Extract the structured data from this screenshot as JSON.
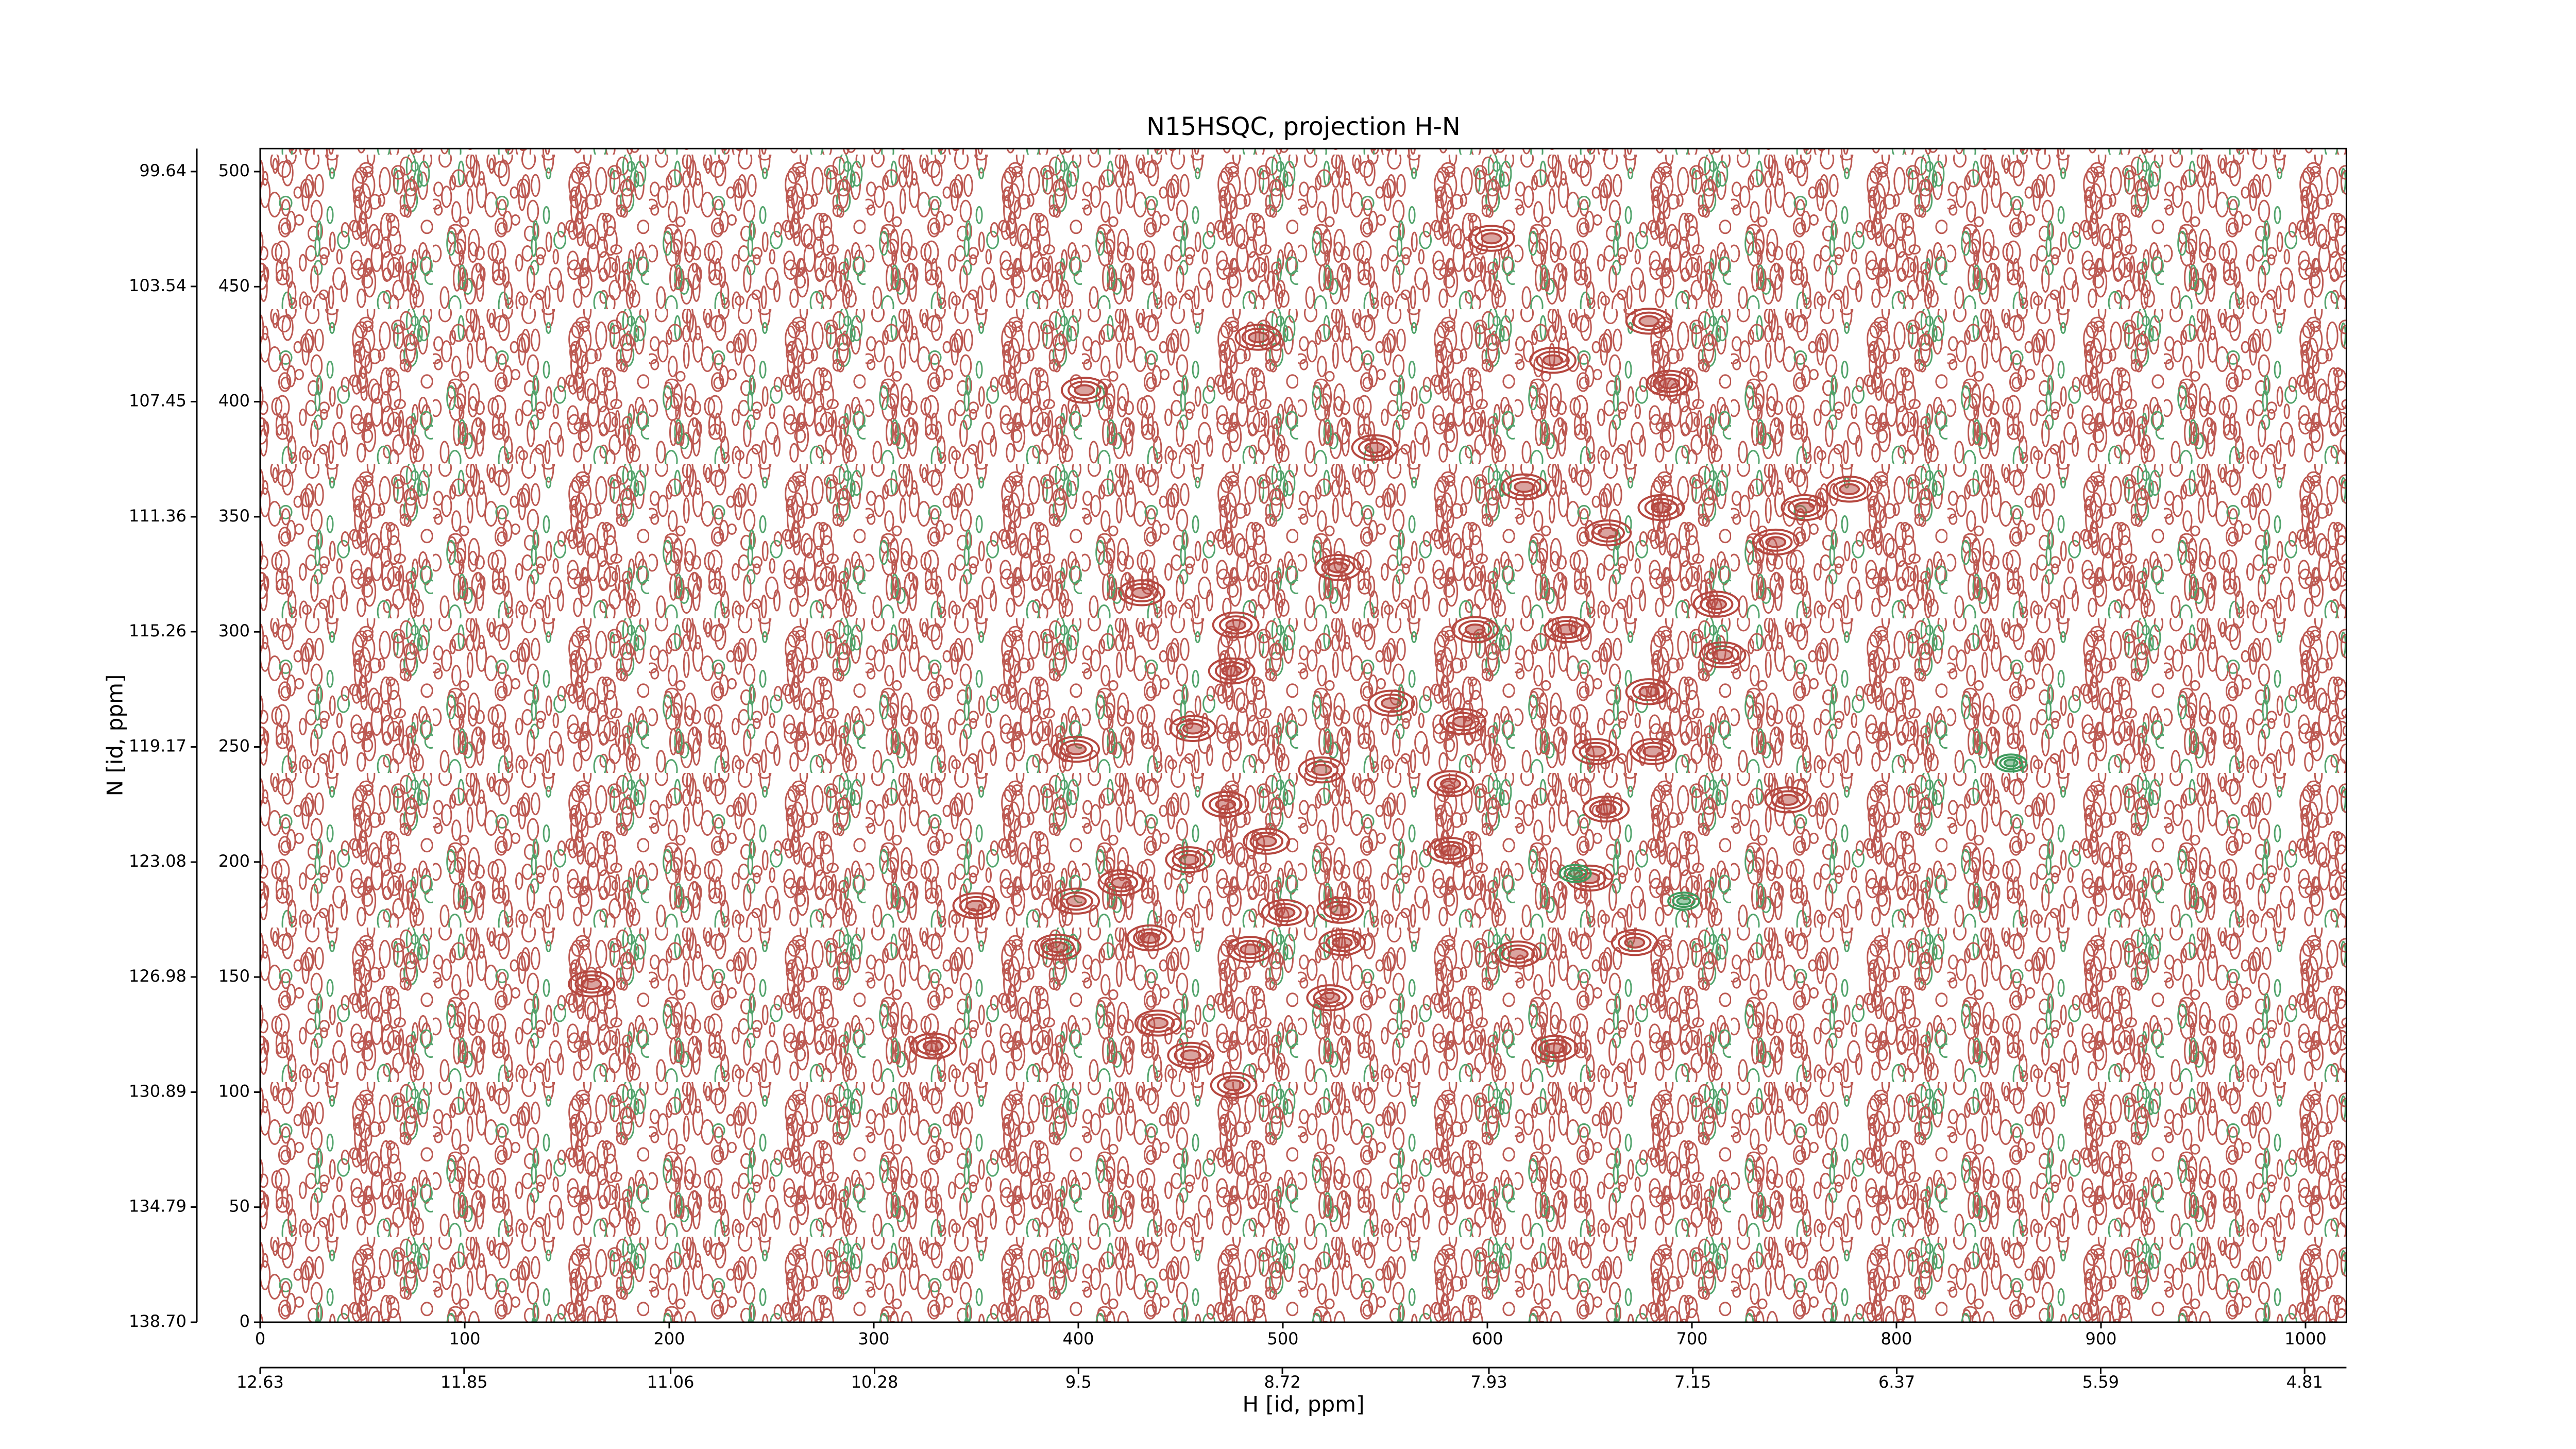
{
  "chart_data": {
    "type": "contour",
    "title": "N15HSQC, projection H-N",
    "xlabel": "H [id, ppm]",
    "ylabel": "N [id, ppm]",
    "xlim": [
      0,
      1020
    ],
    "ylim": [
      0,
      510
    ],
    "xticks": [
      0,
      100,
      200,
      300,
      400,
      500,
      600,
      700,
      800,
      900,
      1000
    ],
    "yticks": [
      0,
      50,
      100,
      150,
      200,
      250,
      300,
      350,
      400,
      450,
      500
    ],
    "x2lim": [
      12.63,
      4.65
    ],
    "x2ticks": [
      12.63,
      11.85,
      11.06,
      10.28,
      9.5,
      8.72,
      7.93,
      7.15,
      6.37,
      5.59,
      4.81
    ],
    "y2lim": [
      138.7,
      98.86
    ],
    "y2ticks": [
      {
        "value": 138.7,
        "label": "138.70"
      },
      134.79,
      130.89,
      126.98,
      123.08,
      119.17,
      115.26,
      111.36,
      107.45,
      103.54,
      99.64
    ],
    "positive": {
      "color": "#b5473f",
      "x": [
        602,
        679,
        488,
        632,
        689,
        403,
        545,
        618,
        685,
        755,
        777,
        659,
        741,
        527,
        431,
        712,
        477,
        594,
        639,
        715,
        475,
        679,
        553,
        456,
        588,
        399,
        653,
        681,
        519,
        582,
        472,
        658,
        747,
        492,
        454,
        582,
        650,
        350,
        399,
        421,
        501,
        528,
        390,
        435,
        484,
        529,
        615,
        672,
        523,
        162,
        329,
        439,
        455,
        633,
        476
      ],
      "y": [
        471,
        435,
        428,
        418,
        408,
        405,
        380,
        363,
        354,
        354,
        362,
        343,
        339,
        328,
        317,
        312,
        303,
        301,
        301,
        290,
        283,
        274,
        269,
        258,
        261,
        249,
        248,
        248,
        240,
        234,
        225,
        223,
        227,
        209,
        201,
        205,
        193,
        181,
        183,
        191,
        178,
        179,
        163,
        167,
        162,
        165,
        160,
        165,
        141,
        147,
        120,
        130,
        116,
        119,
        103
      ]
    },
    "negative": {
      "color": "#3f9a5c",
      "x": [
        856,
        643,
        696
      ],
      "y": [
        243,
        195,
        183
      ]
    }
  }
}
